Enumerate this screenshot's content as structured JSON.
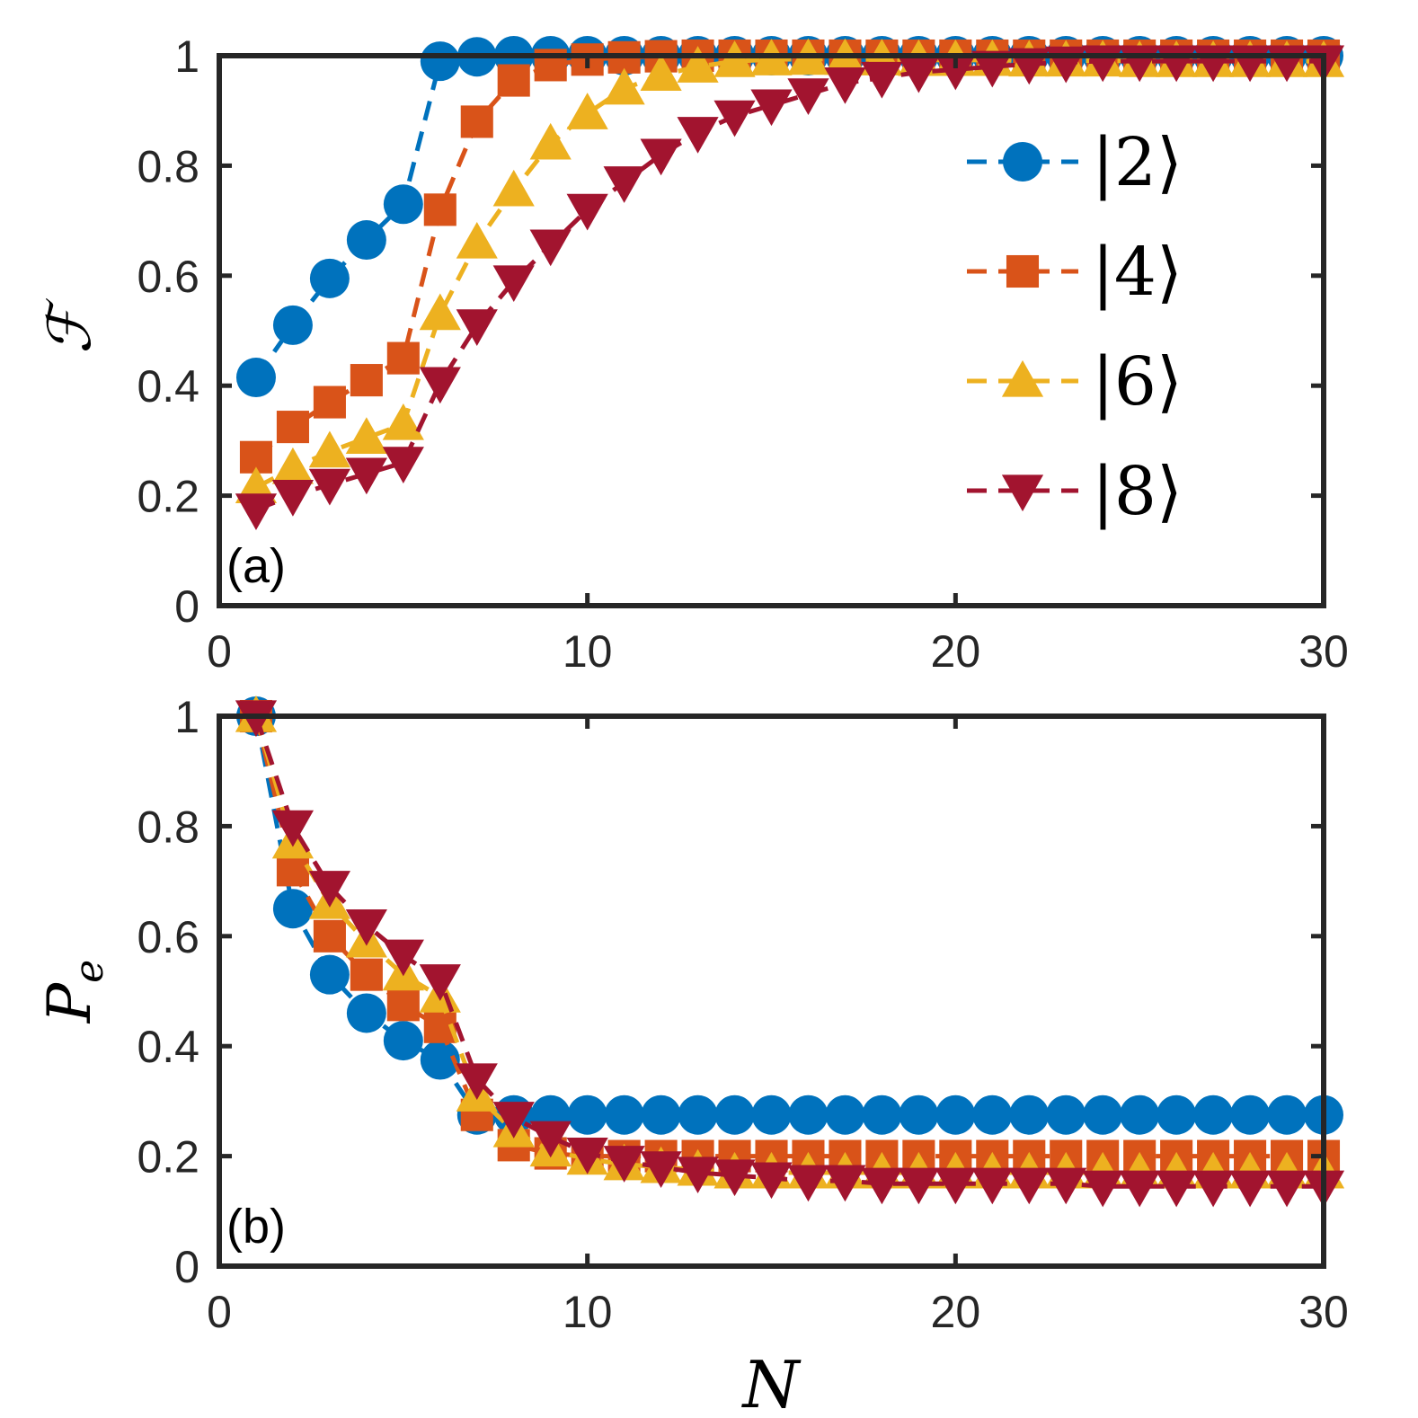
{
  "colors": {
    "axes": "#262626",
    "s2": "#0072BD",
    "s4": "#D95319",
    "s6": "#EDB120",
    "s8": "#A2142F"
  },
  "xlabel": "N",
  "legend": {
    "location": "top-right-inside-panel-a",
    "entries": [
      {
        "label": "|2⟩",
        "marker": "circle",
        "color": "#0072BD"
      },
      {
        "label": "|4⟩",
        "marker": "square",
        "color": "#D95319"
      },
      {
        "label": "|6⟩",
        "marker": "triangle-up",
        "color": "#EDB120"
      },
      {
        "label": "|8⟩",
        "marker": "triangle-down",
        "color": "#A2142F"
      }
    ]
  },
  "chart_data": [
    {
      "type": "line",
      "panel_label": "(a)",
      "ylabel": "ℱ",
      "xlabel": "",
      "xlim": [
        0,
        30
      ],
      "ylim": [
        0,
        1
      ],
      "xticks": [
        0,
        10,
        20,
        30
      ],
      "xtick_labels": [
        "0",
        "10",
        "20",
        "30"
      ],
      "yticks": [
        0,
        0.2,
        0.4,
        0.6,
        0.8,
        1
      ],
      "ytick_labels": [
        "0",
        "0.2",
        "0.4",
        "0.6",
        "0.8",
        "1"
      ],
      "x": [
        1,
        2,
        3,
        4,
        5,
        6,
        7,
        8,
        9,
        10,
        11,
        12,
        13,
        14,
        15,
        16,
        17,
        18,
        19,
        20,
        21,
        22,
        23,
        24,
        25,
        26,
        27,
        28,
        29,
        30
      ],
      "series": [
        {
          "name": "|2⟩",
          "key": "s2",
          "marker": "circle",
          "values": [
            0.415,
            0.51,
            0.595,
            0.665,
            0.73,
            0.99,
            0.998,
            1,
            1,
            1,
            1,
            1,
            1,
            1,
            1,
            1,
            1,
            1,
            1,
            1,
            1,
            1,
            1,
            1,
            1,
            1,
            1,
            1,
            1,
            1
          ]
        },
        {
          "name": "|4⟩",
          "key": "s4",
          "marker": "square",
          "values": [
            0.27,
            0.325,
            0.37,
            0.41,
            0.45,
            0.72,
            0.88,
            0.955,
            0.983,
            0.993,
            0.997,
            0.999,
            1,
            1,
            1,
            1,
            1,
            1,
            1,
            1,
            1,
            1,
            1,
            1,
            1,
            1,
            1,
            1,
            1,
            1
          ]
        },
        {
          "name": "|6⟩",
          "key": "s6",
          "marker": "triangle-up",
          "values": [
            0.215,
            0.25,
            0.28,
            0.305,
            0.33,
            0.53,
            0.66,
            0.755,
            0.84,
            0.895,
            0.94,
            0.965,
            0.98,
            0.99,
            0.993,
            0.994,
            0.994,
            0.993,
            0.992,
            0.992,
            0.992,
            0.991,
            0.991,
            0.991,
            0.99,
            0.99,
            0.99,
            0.99,
            0.99,
            0.99
          ]
        },
        {
          "name": "|8⟩",
          "key": "s8",
          "marker": "triangle-down",
          "values": [
            0.175,
            0.2,
            0.22,
            0.24,
            0.26,
            0.405,
            0.51,
            0.59,
            0.655,
            0.72,
            0.77,
            0.82,
            0.86,
            0.89,
            0.91,
            0.93,
            0.95,
            0.96,
            0.97,
            0.975,
            0.98,
            0.985,
            0.988,
            0.99,
            0.99,
            0.99,
            0.99,
            0.99,
            0.99,
            0.99
          ]
        }
      ]
    },
    {
      "type": "line",
      "panel_label": "(b)",
      "ylabel": "P_e",
      "xlabel": "N",
      "xlim": [
        0,
        30
      ],
      "ylim": [
        0,
        1
      ],
      "xticks": [
        0,
        10,
        20,
        30
      ],
      "xtick_labels": [
        "0",
        "10",
        "20",
        "30"
      ],
      "yticks": [
        0,
        0.2,
        0.4,
        0.6,
        0.8,
        1
      ],
      "ytick_labels": [
        "0",
        "0.2",
        "0.4",
        "0.6",
        "0.8",
        "1"
      ],
      "x": [
        1,
        2,
        3,
        4,
        5,
        6,
        7,
        8,
        9,
        10,
        11,
        12,
        13,
        14,
        15,
        16,
        17,
        18,
        19,
        20,
        21,
        22,
        23,
        24,
        25,
        26,
        27,
        28,
        29,
        30
      ],
      "series": [
        {
          "name": "|2⟩",
          "key": "s2",
          "marker": "circle",
          "values": [
            1,
            0.65,
            0.53,
            0.46,
            0.41,
            0.375,
            0.275,
            0.275,
            0.275,
            0.275,
            0.275,
            0.275,
            0.275,
            0.275,
            0.275,
            0.275,
            0.275,
            0.275,
            0.275,
            0.275,
            0.275,
            0.275,
            0.275,
            0.275,
            0.275,
            0.275,
            0.275,
            0.275,
            0.275,
            0.275
          ]
        },
        {
          "name": "|4⟩",
          "key": "s4",
          "marker": "square",
          "values": [
            1,
            0.72,
            0.6,
            0.53,
            0.475,
            0.435,
            0.275,
            0.22,
            0.205,
            0.2,
            0.2,
            0.2,
            0.2,
            0.2,
            0.2,
            0.2,
            0.2,
            0.2,
            0.2,
            0.2,
            0.2,
            0.2,
            0.2,
            0.2,
            0.2,
            0.2,
            0.2,
            0.2,
            0.2,
            0.2
          ]
        },
        {
          "name": "|6⟩",
          "key": "s6",
          "marker": "triangle-up",
          "values": [
            1,
            0.77,
            0.66,
            0.59,
            0.53,
            0.49,
            0.31,
            0.245,
            0.21,
            0.195,
            0.185,
            0.18,
            0.175,
            0.17,
            0.17,
            0.17,
            0.17,
            0.17,
            0.17,
            0.17,
            0.17,
            0.17,
            0.17,
            0.17,
            0.17,
            0.17,
            0.17,
            0.17,
            0.17,
            0.17
          ]
        },
        {
          "name": "|8⟩",
          "key": "s8",
          "marker": "triangle-down",
          "values": [
            1,
            0.8,
            0.69,
            0.62,
            0.565,
            0.52,
            0.34,
            0.27,
            0.235,
            0.205,
            0.19,
            0.18,
            0.17,
            0.165,
            0.16,
            0.155,
            0.155,
            0.15,
            0.15,
            0.15,
            0.15,
            0.15,
            0.15,
            0.145,
            0.145,
            0.145,
            0.145,
            0.145,
            0.145,
            0.145
          ]
        }
      ]
    }
  ]
}
